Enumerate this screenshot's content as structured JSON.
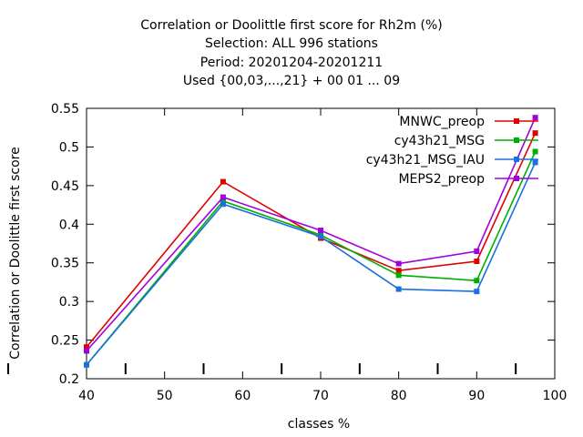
{
  "chart_data": {
    "type": "line",
    "title_lines": [
      "Correlation or Doolittle first score  for Rh2m (%)",
      "Selection: ALL    996 stations",
      "Period: 20201204-20201211",
      "Used {00,03,...,21} + 00 01 ... 09"
    ],
    "xlabel": "classes %",
    "ylabel": "Correlation or Doolittle first score",
    "xlim": [
      40,
      100
    ],
    "ylim": [
      0.2,
      0.55
    ],
    "xticks": [
      "40",
      "50",
      "60",
      "70",
      "80",
      "90",
      "100"
    ],
    "yticks": [
      "0.2",
      "0.25",
      "0.3",
      "0.35",
      "0.4",
      "0.45",
      "0.5",
      "0.55"
    ],
    "extra_bottom_ticks": [
      45,
      55,
      65,
      75,
      85,
      95
    ],
    "legend_position": "top-right",
    "grid": false,
    "x": [
      40,
      57.5,
      70,
      80,
      90,
      97.5
    ],
    "series": [
      {
        "name": "MNWC_preop",
        "color": "#e00000",
        "values": [
          0.241,
          0.455,
          0.382,
          0.34,
          0.352,
          0.518
        ]
      },
      {
        "name": "cy43h21_MSG",
        "color": "#00b000",
        "values": [
          0.218,
          0.43,
          0.386,
          0.334,
          0.327,
          0.494
        ]
      },
      {
        "name": "cy43h21_MSG_IAU",
        "color": "#1a70e0",
        "values": [
          0.218,
          0.426,
          0.384,
          0.316,
          0.313,
          0.48
        ]
      },
      {
        "name": "MEPS2_preop",
        "color": "#a000e0",
        "values": [
          0.236,
          0.435,
          0.392,
          0.349,
          0.365,
          0.538
        ]
      }
    ]
  }
}
